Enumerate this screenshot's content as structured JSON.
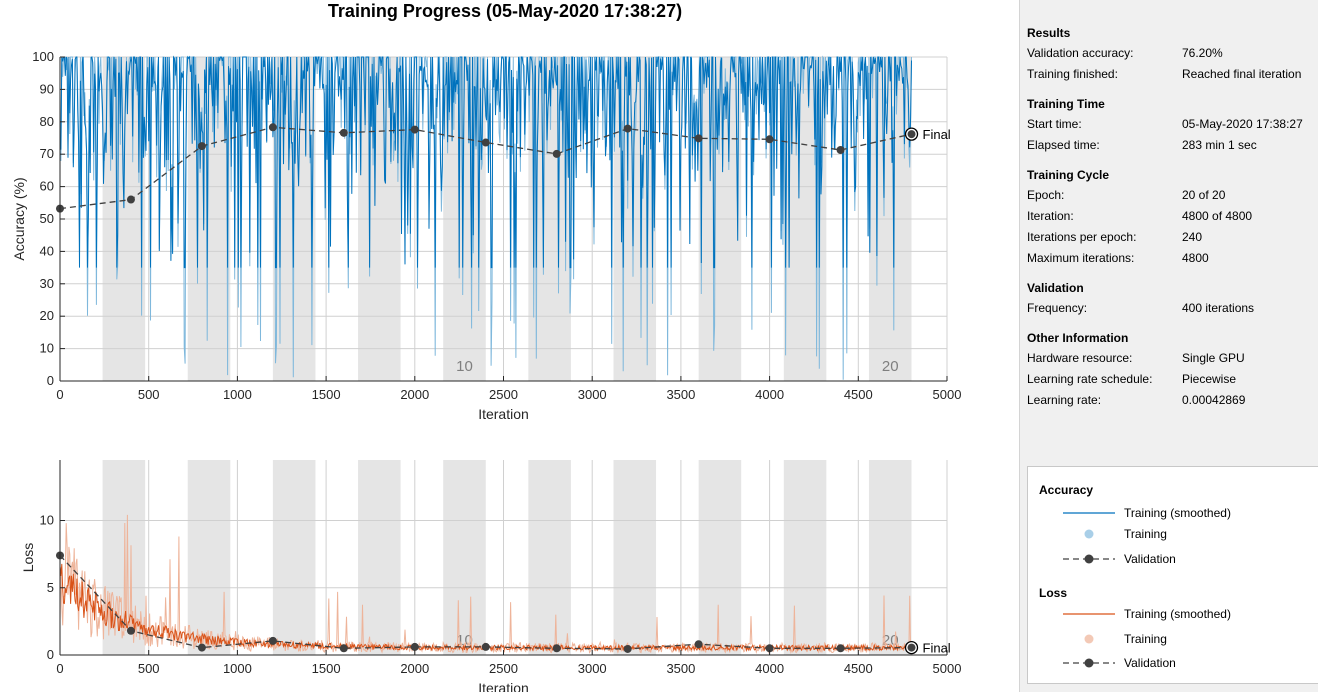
{
  "title": "Training Progress (05-May-2020 17:38:27)",
  "colors": {
    "acc_train_smoothed": "#0072bd",
    "acc_train": "#7fb8dc",
    "loss_train_smoothed": "#d95319",
    "loss_train": "#eeb49a",
    "validation": "#404040",
    "epoch_band": "#e5e5e5"
  },
  "epoch_labels": [
    "10",
    "20"
  ],
  "final_label": "Final",
  "chart_data": [
    {
      "type": "line",
      "name": "accuracy",
      "xlabel": "Iteration",
      "ylabel": "Accuracy (%)",
      "xlim": [
        0,
        5000
      ],
      "ylim": [
        0,
        100
      ],
      "xticks": [
        "0",
        "500",
        "1000",
        "1500",
        "2000",
        "2500",
        "3000",
        "3500",
        "4000",
        "4500",
        "5000"
      ],
      "yticks": [
        "0",
        "10",
        "20",
        "30",
        "40",
        "50",
        "60",
        "70",
        "80",
        "90",
        "100"
      ],
      "grid": true,
      "epochs": 20,
      "iterations_per_epoch": 240,
      "series": [
        {
          "name": "Validation",
          "x": [
            0,
            400,
            800,
            1200,
            1600,
            2000,
            2400,
            2800,
            3200,
            3600,
            4000,
            4400,
            4800
          ],
          "values": [
            53.2,
            56.0,
            72.5,
            78.3,
            76.6,
            77.6,
            73.6,
            70.1,
            77.9,
            74.9,
            74.6,
            71.3,
            76.2
          ]
        }
      ]
    },
    {
      "type": "line",
      "name": "loss",
      "xlabel": "Iteration",
      "ylabel": "Loss",
      "xlim": [
        0,
        5000
      ],
      "ylim": [
        0,
        14.5
      ],
      "xticks": [
        "0",
        "500",
        "1000",
        "1500",
        "2000",
        "2500",
        "3000",
        "3500",
        "4000",
        "4500",
        "5000"
      ],
      "yticks": [
        "0",
        "5",
        "10"
      ],
      "grid": true,
      "series": [
        {
          "name": "Validation",
          "x": [
            0,
            400,
            800,
            1200,
            1600,
            2000,
            2400,
            2800,
            3200,
            3600,
            4000,
            4400,
            4800
          ],
          "values": [
            7.4,
            1.8,
            0.55,
            1.05,
            0.5,
            0.6,
            0.6,
            0.5,
            0.45,
            0.8,
            0.5,
            0.5,
            0.55
          ]
        }
      ]
    }
  ],
  "results": {
    "heading": "Results",
    "rows": [
      {
        "k": "Validation accuracy:",
        "v": "76.20%"
      },
      {
        "k": "Training finished:",
        "v": "Reached final iteration"
      }
    ]
  },
  "training_time": {
    "heading": "Training Time",
    "rows": [
      {
        "k": "Start time:",
        "v": "05-May-2020 17:38:27"
      },
      {
        "k": "Elapsed time:",
        "v": "283 min 1 sec"
      }
    ]
  },
  "training_cycle": {
    "heading": "Training Cycle",
    "rows": [
      {
        "k": "Epoch:",
        "v": "20 of 20"
      },
      {
        "k": "Iteration:",
        "v": "4800 of 4800"
      },
      {
        "k": "Iterations per epoch:",
        "v": "240"
      },
      {
        "k": "Maximum iterations:",
        "v": "4800"
      }
    ]
  },
  "validation": {
    "heading": "Validation",
    "rows": [
      {
        "k": "Frequency:",
        "v": "400 iterations"
      }
    ]
  },
  "other_info": {
    "heading": "Other Information",
    "rows": [
      {
        "k": "Hardware resource:",
        "v": "Single GPU"
      },
      {
        "k": "Learning rate schedule:",
        "v": "Piecewise"
      },
      {
        "k": "Learning rate:",
        "v": "0.00042869"
      }
    ]
  },
  "legend": {
    "accuracy_heading": "Accuracy",
    "loss_heading": "Loss",
    "training_smoothed": "Training (smoothed)",
    "training": "Training",
    "validation": "Validation"
  }
}
